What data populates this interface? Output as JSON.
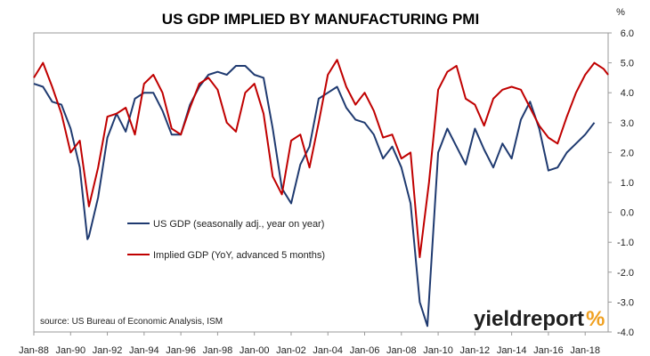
{
  "chart_data": {
    "type": "line",
    "title": "US GDP IMPLIED BY MANUFACTURING PMI",
    "y_unit": "%",
    "ylim": [
      -4.0,
      6.0
    ],
    "y_ticks": [
      "6.0",
      "5.0",
      "4.0",
      "3.0",
      "2.0",
      "1.0",
      "0.0",
      "-1.0",
      "-2.0",
      "-3.0",
      "-4.0"
    ],
    "x_range": [
      "Jan-88",
      "Apr-19"
    ],
    "x_ticks": [
      "Jan-88",
      "Jan-90",
      "Jan-92",
      "Jan-94",
      "Jan-96",
      "Jan-98",
      "Jan-00",
      "Jan-02",
      "Jan-04",
      "Jan-06",
      "Jan-08",
      "Jan-10",
      "Jan-12",
      "Jan-14",
      "Jan-16",
      "Jan-18"
    ],
    "grid": false,
    "legend": "inside-lower-left",
    "source": "source: US Bureau of Economic Analysis, ISM",
    "logo": {
      "text_main": "yieldreport",
      "text_symbol": "%"
    },
    "colors": {
      "us_gdp": "#1f3a70",
      "implied_gdp": "#c00000"
    },
    "series": [
      {
        "name": "US GDP (seasonally adj., year on year)",
        "x": [
          "Jan-88",
          "Jul-88",
          "Jan-89",
          "Jul-89",
          "Jan-90",
          "Jul-90",
          "Dec-90",
          "Jan-91",
          "Jul-91",
          "Jan-92",
          "Jul-92",
          "Jan-93",
          "Jul-93",
          "Jan-94",
          "Jul-94",
          "Jan-95",
          "Jul-95",
          "Jan-96",
          "Jul-96",
          "Jan-97",
          "Jul-97",
          "Jan-98",
          "Jul-98",
          "Jan-99",
          "Jul-99",
          "Jan-00",
          "Jul-00",
          "Jan-01",
          "Jul-01",
          "Jan-02",
          "Jul-02",
          "Jan-03",
          "Jul-03",
          "Jan-04",
          "Jul-04",
          "Jan-05",
          "Jul-05",
          "Jan-06",
          "Jul-06",
          "Jan-07",
          "Jul-07",
          "Jan-08",
          "Jul-08",
          "Jan-09",
          "Jun-09",
          "Jan-10",
          "Jul-10",
          "Jan-11",
          "Jul-11",
          "Jan-12",
          "Jul-12",
          "Jan-13",
          "Jul-13",
          "Jan-14",
          "Jul-14",
          "Jan-15",
          "Jul-15",
          "Jan-16",
          "Jul-16",
          "Jan-17",
          "Jul-17",
          "Jan-18",
          "Jul-18"
        ],
        "values": [
          4.3,
          4.2,
          3.7,
          3.6,
          2.8,
          1.5,
          -0.9,
          -0.8,
          0.5,
          2.5,
          3.3,
          2.7,
          3.8,
          4.0,
          4.0,
          3.4,
          2.6,
          2.6,
          3.6,
          4.2,
          4.6,
          4.7,
          4.6,
          4.9,
          4.9,
          4.6,
          4.5,
          2.8,
          0.8,
          0.3,
          1.6,
          2.2,
          3.8,
          4.0,
          4.2,
          3.5,
          3.1,
          3.0,
          2.6,
          1.8,
          2.2,
          1.5,
          0.3,
          -3.0,
          -3.8,
          2.0,
          2.8,
          2.2,
          1.6,
          2.8,
          2.1,
          1.5,
          2.3,
          1.8,
          3.1,
          3.7,
          2.8,
          1.4,
          1.5,
          2.0,
          2.3,
          2.6,
          3.0
        ]
      },
      {
        "name": "Implied GDP (YoY, advanced 5 months)",
        "x": [
          "Jan-88",
          "Jul-88",
          "Jan-89",
          "Jul-89",
          "Jan-90",
          "Jul-90",
          "Jan-91",
          "Jul-91",
          "Jan-92",
          "Jul-92",
          "Jan-93",
          "Jul-93",
          "Jan-94",
          "Jul-94",
          "Jan-95",
          "Jul-95",
          "Jan-96",
          "Jul-96",
          "Jan-97",
          "Jul-97",
          "Jan-98",
          "Jul-98",
          "Jan-99",
          "Jul-99",
          "Jan-00",
          "Jul-00",
          "Jan-01",
          "Jul-01",
          "Jan-02",
          "Jul-02",
          "Jan-03",
          "Jul-03",
          "Jan-04",
          "Jul-04",
          "Jan-05",
          "Jul-05",
          "Jan-06",
          "Jul-06",
          "Jan-07",
          "Jul-07",
          "Jan-08",
          "Jul-08",
          "Jan-09",
          "Jul-09",
          "Jan-10",
          "Jul-10",
          "Jan-11",
          "Jul-11",
          "Jan-12",
          "Jul-12",
          "Jan-13",
          "Jul-13",
          "Jan-14",
          "Jul-14",
          "Jan-15",
          "Jul-15",
          "Jan-16",
          "Jul-16",
          "Jan-17",
          "Jul-17",
          "Jan-18",
          "Jul-18",
          "Jan-19",
          "Apr-19"
        ],
        "values": [
          4.5,
          5.0,
          4.2,
          3.3,
          2.0,
          2.4,
          0.2,
          1.5,
          3.2,
          3.3,
          3.5,
          2.6,
          4.3,
          4.6,
          4.0,
          2.8,
          2.6,
          3.5,
          4.3,
          4.5,
          4.1,
          3.0,
          2.7,
          4.0,
          4.3,
          3.3,
          1.2,
          0.6,
          2.4,
          2.6,
          1.5,
          3.0,
          4.6,
          5.1,
          4.2,
          3.6,
          4.0,
          3.4,
          2.5,
          2.6,
          1.8,
          2.0,
          -1.5,
          1.0,
          4.1,
          4.7,
          4.9,
          3.8,
          3.6,
          2.9,
          3.8,
          4.1,
          4.2,
          4.1,
          3.5,
          2.9,
          2.5,
          2.3,
          3.2,
          4.0,
          4.6,
          5.0,
          4.8,
          4.6
        ]
      }
    ]
  }
}
